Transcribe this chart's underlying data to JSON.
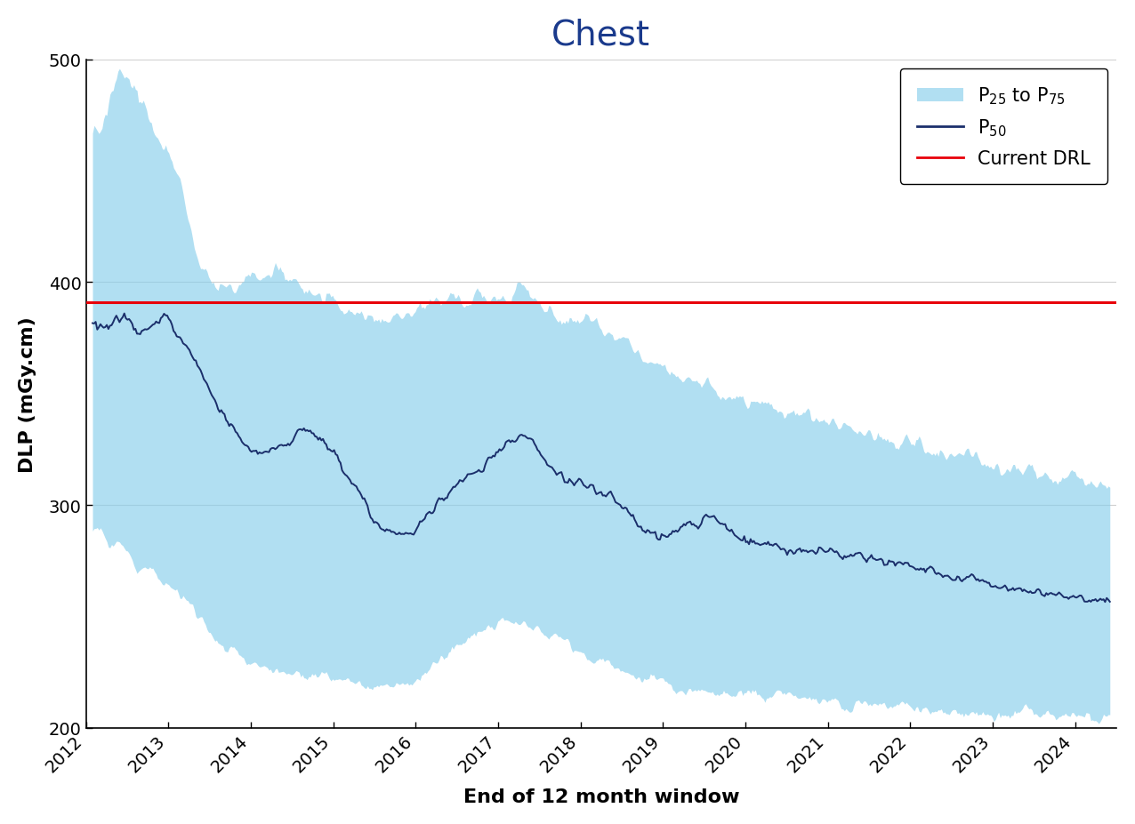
{
  "title": "Chest",
  "xlabel": "End of 12 month window",
  "ylabel": "DLP (mGy.cm)",
  "drl_value": 391,
  "ylim": [
    200,
    500
  ],
  "xlim_start": 2012.0,
  "xlim_end": 2024.5,
  "fill_color": "#87ceeb",
  "fill_alpha": 0.65,
  "line_color": "#1b2f6b",
  "drl_color": "#e8000a",
  "title_color": "#1a3a8c",
  "title_fontsize": 28,
  "axis_label_fontsize": 16,
  "tick_fontsize": 14,
  "legend_fontsize": 15,
  "xtick_years": [
    2012,
    2013,
    2014,
    2015,
    2016,
    2017,
    2018,
    2019,
    2020,
    2021,
    2022,
    2023,
    2024
  ],
  "yticks": [
    200,
    300,
    400,
    500
  ]
}
